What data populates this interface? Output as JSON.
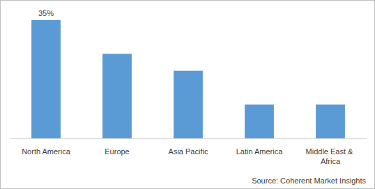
{
  "chart_data": {
    "type": "bar",
    "categories": [
      "North America",
      "Europe",
      "Asia Pacific",
      "Latin America",
      "Middle East & Africa"
    ],
    "values": [
      35,
      25,
      20,
      10,
      10
    ],
    "value_labels": [
      "35%",
      null,
      null,
      null,
      null
    ],
    "color": "#5b9bd5",
    "ylim": [
      0,
      35
    ],
    "grid": false,
    "tick_labels": "x",
    "annotation": "Source: Coherent Market Insights"
  }
}
